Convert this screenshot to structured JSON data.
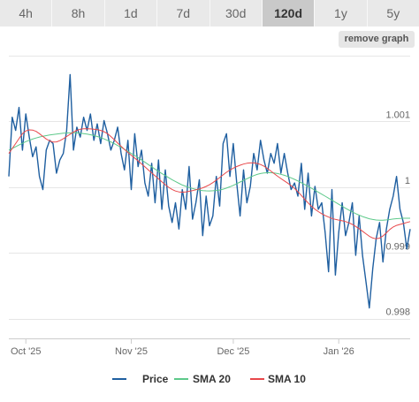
{
  "range_tabs": [
    {
      "label": "4h",
      "active": false
    },
    {
      "label": "8h",
      "active": false
    },
    {
      "label": "1d",
      "active": false
    },
    {
      "label": "7d",
      "active": false
    },
    {
      "label": "30d",
      "active": false
    },
    {
      "label": "120d",
      "active": true
    },
    {
      "label": "1y",
      "active": false
    },
    {
      "label": "5y",
      "active": false
    }
  ],
  "remove_graph_label": "remove graph",
  "chart_data": {
    "type": "line",
    "y_ticks": [
      {
        "value": 0.998,
        "label": "0.998"
      },
      {
        "value": 0.999,
        "label": "0.999"
      },
      {
        "value": 1.0,
        "label": "1"
      },
      {
        "value": 1.001,
        "label": "1.001"
      }
    ],
    "ylim": [
      0.9977,
      1.002
    ],
    "x_ticks": [
      {
        "day": 5,
        "label": "Oct '25"
      },
      {
        "day": 36,
        "label": "Nov '25"
      },
      {
        "day": 66,
        "label": "Dec '25"
      },
      {
        "day": 97,
        "label": "Jan '26"
      }
    ],
    "xlim": [
      0,
      118
    ],
    "grid": true,
    "legend_position": "bottom",
    "series": [
      {
        "name": "Price",
        "color": "#1f5fa0",
        "values": [
          1.000163,
          1.001063,
          1.000863,
          1.001213,
          1.000563,
          1.001113,
          1.000763,
          1.000463,
          1.000613,
          1.000163,
          0.999963,
          1.000563,
          1.000713,
          1.000663,
          1.000213,
          1.000413,
          1.000513,
          1.000863,
          1.001713,
          1.000563,
          1.000913,
          1.000763,
          1.001063,
          1.000863,
          1.001113,
          1.000713,
          1.000963,
          1.000663,
          1.001013,
          1.000813,
          1.000563,
          1.000713,
          1.000913,
          1.000513,
          1.000263,
          1.000713,
          0.999963,
          1.000813,
          1.000313,
          1.000563,
          1.000063,
          0.999863,
          1.000363,
          0.999763,
          1.000413,
          0.999663,
          1.000263,
          0.999713,
          0.999463,
          0.999763,
          0.999363,
          0.999963,
          0.999663,
          1.000313,
          0.999513,
          0.999763,
          1.000113,
          0.999263,
          0.999863,
          0.999413,
          0.999563,
          1.000163,
          0.999713,
          1.000663,
          1.000813,
          1.000163,
          1.000663,
          1.000063,
          0.999563,
          1.000263,
          0.999763,
          1.000013,
          1.000513,
          1.000263,
          1.000713,
          1.000413,
          1.000213,
          1.000513,
          1.000363,
          1.000663,
          1.000213,
          1.000513,
          1.000213,
          0.999963,
          1.000063,
          0.999863,
          1.000363,
          0.999663,
          1.000213,
          0.999563,
          1.000013,
          0.999663,
          0.999763,
          0.999313,
          0.998713,
          0.999963,
          0.998663,
          0.999313,
          0.999763,
          0.999263,
          0.999463,
          0.999763,
          0.998963,
          0.999563,
          0.998963,
          0.998563,
          0.998163,
          0.998763,
          0.999213,
          0.999463,
          0.998863,
          0.999363,
          0.999663,
          0.999863,
          1.000163,
          0.999663,
          0.999463,
          0.999063,
          0.999363
        ]
      },
      {
        "name": "SMA 20",
        "color": "#5dc98a",
        "values": [
          1.000563,
          1.000588,
          1.000614,
          1.000641,
          1.000667,
          1.000692,
          1.000713,
          1.000731,
          1.000747,
          1.000762,
          1.000774,
          1.000784,
          1.000793,
          1.000801,
          1.000808,
          1.000815,
          1.00082,
          1.000824,
          1.000826,
          1.000827,
          1.000825,
          1.000821,
          1.000815,
          1.000808,
          1.000798,
          1.000785,
          1.000771,
          1.000754,
          1.000734,
          1.000712,
          1.000688,
          1.000662,
          1.000634,
          1.000606,
          1.000575,
          1.000545,
          1.000513,
          1.000481,
          1.000448,
          1.000414,
          1.000379,
          1.000344,
          1.000309,
          1.000274,
          1.000241,
          1.000208,
          1.000176,
          1.000144,
          1.000114,
          1.000086,
          1.000058,
          1.000033,
          1.000012,
          0.999995,
          0.99998,
          0.999967,
          0.999956,
          0.999948,
          0.999944,
          0.999943,
          0.999945,
          0.99995,
          0.999958,
          0.99997,
          0.999986,
          1.000006,
          1.000028,
          1.000053,
          1.000078,
          1.000103,
          1.000128,
          1.000153,
          1.000175,
          1.000194,
          1.000208,
          1.000216,
          1.000219,
          1.000219,
          1.000215,
          1.000207,
          1.000196,
          1.000181,
          1.000163,
          1.000142,
          1.000119,
          1.000094,
          1.000068,
          1.000041,
          1.000013,
          0.999983,
          0.999954,
          0.999923,
          0.999893,
          0.999863,
          0.999833,
          0.999802,
          0.999771,
          0.99974,
          0.999709,
          0.99968,
          0.999651,
          0.999624,
          0.999598,
          0.999575,
          0.999553,
          0.999535,
          0.99952,
          0.999509,
          0.999501,
          0.999498,
          0.999498,
          0.999502,
          0.999508,
          0.999515,
          0.999521,
          0.999525,
          0.999528,
          0.999528,
          0.999527
        ]
      },
      {
        "name": "SMA 10",
        "color": "#e8474a",
        "values": [
          1.000513,
          1.000588,
          1.000663,
          1.000738,
          1.000813,
          1.000855,
          1.000871,
          1.000868,
          1.000848,
          1.000813,
          1.000772,
          1.000733,
          1.000703,
          1.000686,
          1.000688,
          1.000707,
          1.000736,
          1.000771,
          1.000806,
          1.000839,
          1.000865,
          1.000881,
          1.000888,
          1.000889,
          1.000886,
          1.000882,
          1.000875,
          1.000863,
          1.000843,
          1.000813,
          1.000771,
          1.000722,
          1.000671,
          1.000621,
          1.000574,
          1.000529,
          1.000486,
          1.000443,
          1.000399,
          1.000354,
          1.000309,
          1.000264,
          1.000218,
          1.000173,
          1.000127,
          1.000081,
          1.000037,
          0.999998,
          0.999965,
          0.999941,
          0.999928,
          0.999924,
          0.999928,
          0.999937,
          0.999948,
          0.99996,
          0.999974,
          0.99999,
          1.000011,
          1.000037,
          1.000069,
          1.000106,
          1.000146,
          1.000187,
          1.000226,
          1.00026,
          1.000289,
          1.000314,
          1.000334,
          1.000351,
          1.000363,
          1.000369,
          1.000369,
          1.000361,
          1.000345,
          1.000319,
          1.000285,
          1.000246,
          1.000206,
          1.000167,
          1.000131,
          1.000096,
          1.000061,
          1.000023,
          0.99998,
          0.99993,
          0.999874,
          0.999816,
          0.99976,
          0.999709,
          0.999665,
          0.999628,
          0.999596,
          0.999569,
          0.999545,
          0.999525,
          0.99951,
          0.999499,
          0.999489,
          0.999476,
          0.999458,
          0.999434,
          0.999403,
          0.999368,
          0.99933,
          0.999291,
          0.999254,
          0.999226,
          0.999214,
          0.999225,
          0.999258,
          0.999306,
          0.999355,
          0.999394,
          0.999418,
          0.999433,
          0.999447,
          0.999463,
          0.999477
        ]
      }
    ]
  }
}
